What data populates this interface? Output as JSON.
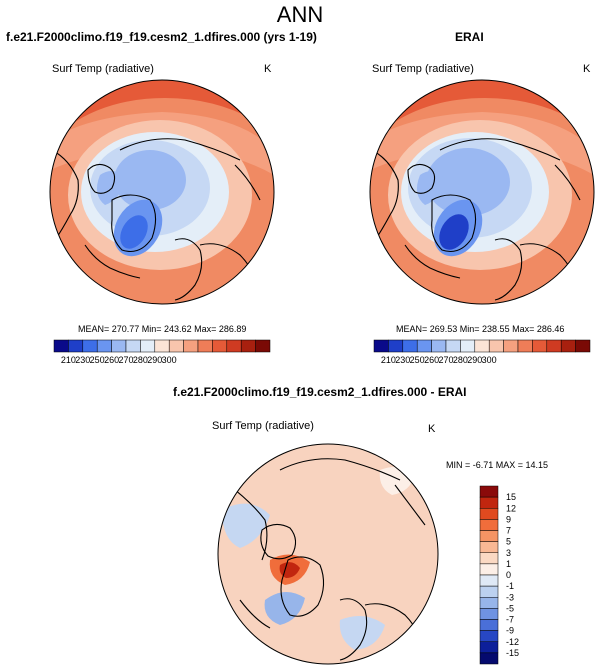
{
  "figure": {
    "title": "ANN"
  },
  "panels": [
    {
      "case_title": "f.e21.F2000climo.f19_f19.cesm2_1.dfires.000 (yrs 1-19)",
      "variable": "Surf Temp (radiative)",
      "units": "K",
      "stats": "MEAN= 270.77  Min= 243.62  Max= 286.89"
    },
    {
      "case_title": "ERAI",
      "variable": "Surf Temp (radiative)",
      "units": "K",
      "stats": "MEAN= 269.53  Min= 238.55  Max= 286.46"
    },
    {
      "case_title": "f.e21.F2000climo.f19_f19.cesm2_1.dfires.000 - ERAI",
      "variable": "Surf Temp (radiative)",
      "units": "K",
      "stats": "MIN =  -6.71 MAX =  14.15"
    }
  ],
  "colorbars": {
    "absolute": {
      "labels": [
        "210",
        "230",
        "250",
        "260",
        "270",
        "280",
        "290",
        "300"
      ],
      "colors": [
        "#0a0a8a",
        "#1f3fc8",
        "#3d6ee8",
        "#6a95f0",
        "#9ab8f2",
        "#c6d8f4",
        "#e4eef8",
        "#fbe4d6",
        "#f8c5ad",
        "#f5a07f",
        "#ef7d58",
        "#e55a38",
        "#cf3b22",
        "#a8200f",
        "#7a0a05"
      ]
    },
    "difference": {
      "labels": [
        "15",
        "12",
        "9",
        "7",
        "5",
        "3",
        "1",
        "0",
        "-1",
        "-3",
        "-5",
        "-7",
        "-9",
        "-12",
        "-15"
      ],
      "colors": [
        "#8a0a0a",
        "#c1260f",
        "#e04a1f",
        "#f06d3b",
        "#f59464",
        "#f9b894",
        "#fbd9c3",
        "#fcefe7",
        "#dfe9f6",
        "#bcd1f0",
        "#97b5ea",
        "#6f93e2",
        "#4a6fd8",
        "#2747c4",
        "#0d1f9a",
        "#050a6e"
      ]
    }
  },
  "colors": {
    "warm": "#f08a63",
    "warm_light": "#f7b79b",
    "cold": "#8fb0ee",
    "cold_deep": "#4a78de",
    "diff_bg": "#f8d3bf",
    "diff_blue": "#c5d7f2"
  }
}
